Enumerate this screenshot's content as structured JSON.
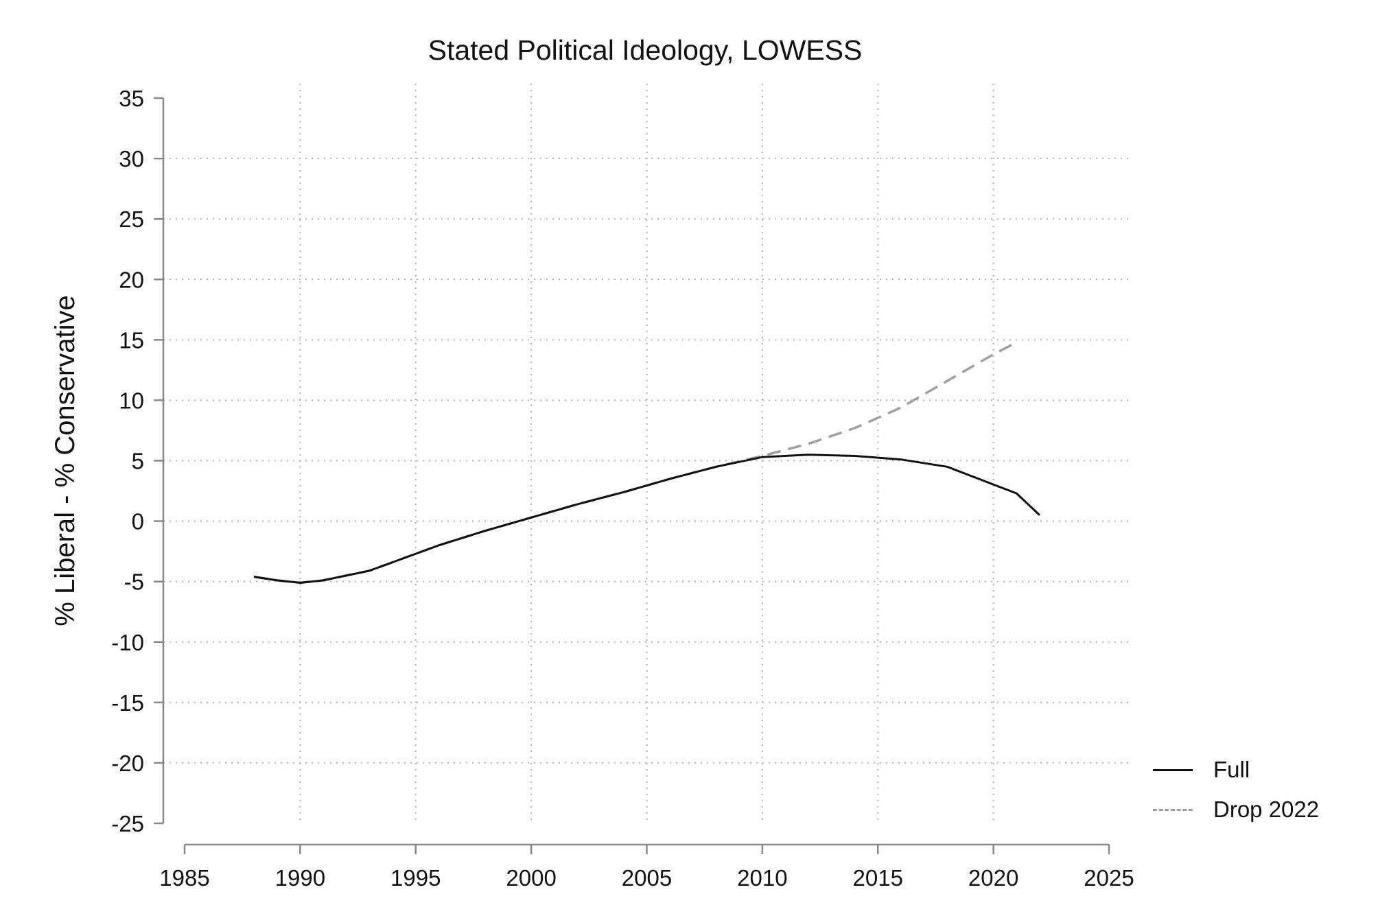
{
  "chart_data": {
    "type": "line",
    "title": "Stated Political Ideology, LOWESS",
    "xlabel": "",
    "ylabel": "% Liberal - % Conservative",
    "xlim": [
      1985,
      2025
    ],
    "ylim": [
      -25,
      35
    ],
    "x_ticks": [
      1985,
      1990,
      1995,
      2000,
      2005,
      2010,
      2015,
      2020,
      2025
    ],
    "y_ticks": [
      35,
      30,
      25,
      20,
      15,
      10,
      5,
      0,
      -5,
      -10,
      -15,
      -20,
      -25
    ],
    "grid": true,
    "legend_position": "bottom-right",
    "series": [
      {
        "name": "Full",
        "color": "#111111",
        "style": "solid",
        "x": [
          1988,
          1989,
          1990,
          1991,
          1993,
          1994,
          1996,
          1998,
          2000,
          2002,
          2004,
          2006,
          2008,
          2010,
          2012,
          2014,
          2016,
          2018,
          2021,
          2022
        ],
        "y": [
          -4.6,
          -4.9,
          -5.1,
          -4.9,
          -4.1,
          -3.4,
          -2.0,
          -0.8,
          0.3,
          1.4,
          2.4,
          3.5,
          4.5,
          5.3,
          5.5,
          5.4,
          5.1,
          4.5,
          2.3,
          0.5
        ]
      },
      {
        "name": "Drop 2022",
        "color": "#a0a0a0",
        "style": "dashed",
        "x": [
          1988,
          1989,
          1990,
          1991,
          1993,
          1994,
          1996,
          1998,
          2000,
          2002,
          2004,
          2006,
          2008,
          2010,
          2012,
          2014,
          2016,
          2018,
          2020,
          2021
        ],
        "y": [
          -4.6,
          -4.9,
          -5.1,
          -4.9,
          -4.1,
          -3.4,
          -2.0,
          -0.8,
          0.3,
          1.4,
          2.4,
          3.5,
          4.5,
          5.4,
          6.4,
          7.7,
          9.4,
          11.6,
          13.8,
          14.8
        ]
      }
    ]
  }
}
